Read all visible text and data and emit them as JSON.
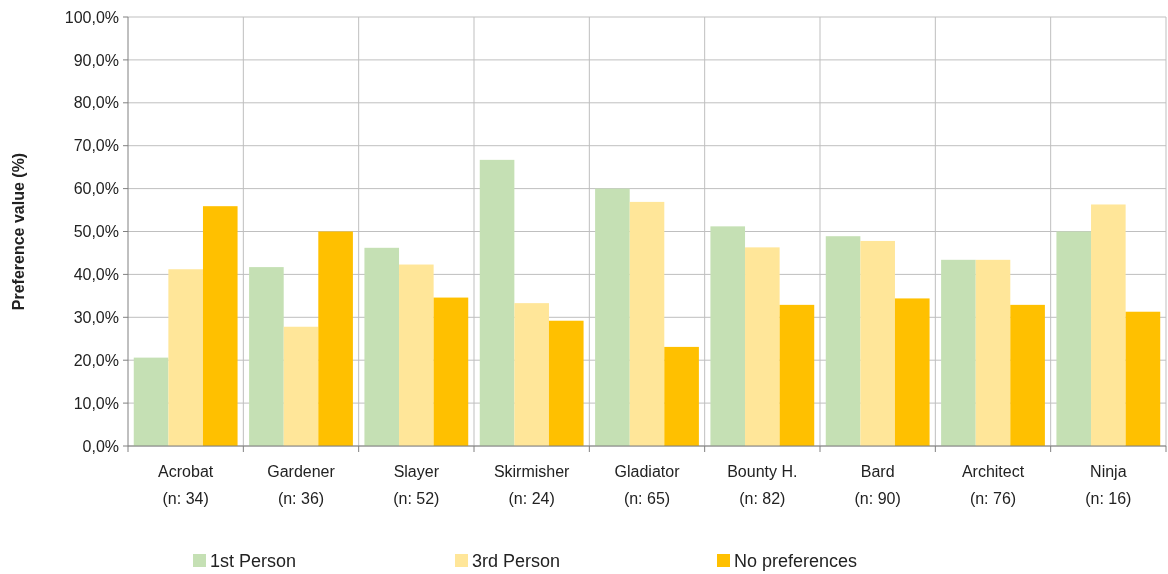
{
  "chart_data": {
    "type": "bar",
    "ylabel": "Preference value (%)",
    "categories": [
      "Acrobat\n(n: 34)",
      "Gardener\n(n: 36)",
      "Slayer\n(n: 52)",
      "Skirmisher\n(n: 24)",
      "Gladiator\n(n: 65)",
      "Bounty H.\n(n: 82)",
      "Bard\n(n: 90)",
      "Architect\n(n: 76)",
      "Ninja\n(n: 16)"
    ],
    "series": [
      {
        "name": "1st Person",
        "color": "#c5e0b4",
        "values": [
          20.6,
          41.7,
          46.2,
          66.7,
          60.0,
          51.2,
          48.9,
          43.4,
          50.0
        ]
      },
      {
        "name": "3rd Person",
        "color": "#ffe699",
        "values": [
          41.2,
          27.8,
          42.3,
          33.3,
          56.9,
          46.3,
          47.8,
          43.4,
          56.3
        ]
      },
      {
        "name": "No preferences",
        "color": "#ffc000",
        "values": [
          55.9,
          50.0,
          34.6,
          29.2,
          23.1,
          32.9,
          34.4,
          32.9,
          31.3
        ]
      }
    ],
    "ylim": [
      0,
      100
    ],
    "yticks": [
      {
        "value": 0,
        "label": "0,0%"
      },
      {
        "value": 10,
        "label": "10,0%"
      },
      {
        "value": 20,
        "label": "20,0%"
      },
      {
        "value": 30,
        "label": "30,0%"
      },
      {
        "value": 40,
        "label": "40,0%"
      },
      {
        "value": 50,
        "label": "50,0%"
      },
      {
        "value": 60,
        "label": "60,0%"
      },
      {
        "value": 70,
        "label": "70,0%"
      },
      {
        "value": 80,
        "label": "80,0%"
      },
      {
        "value": 90,
        "label": "90,0%"
      },
      {
        "value": 100,
        "label": "100,0%"
      }
    ],
    "grid": true,
    "legend": "bottom"
  }
}
